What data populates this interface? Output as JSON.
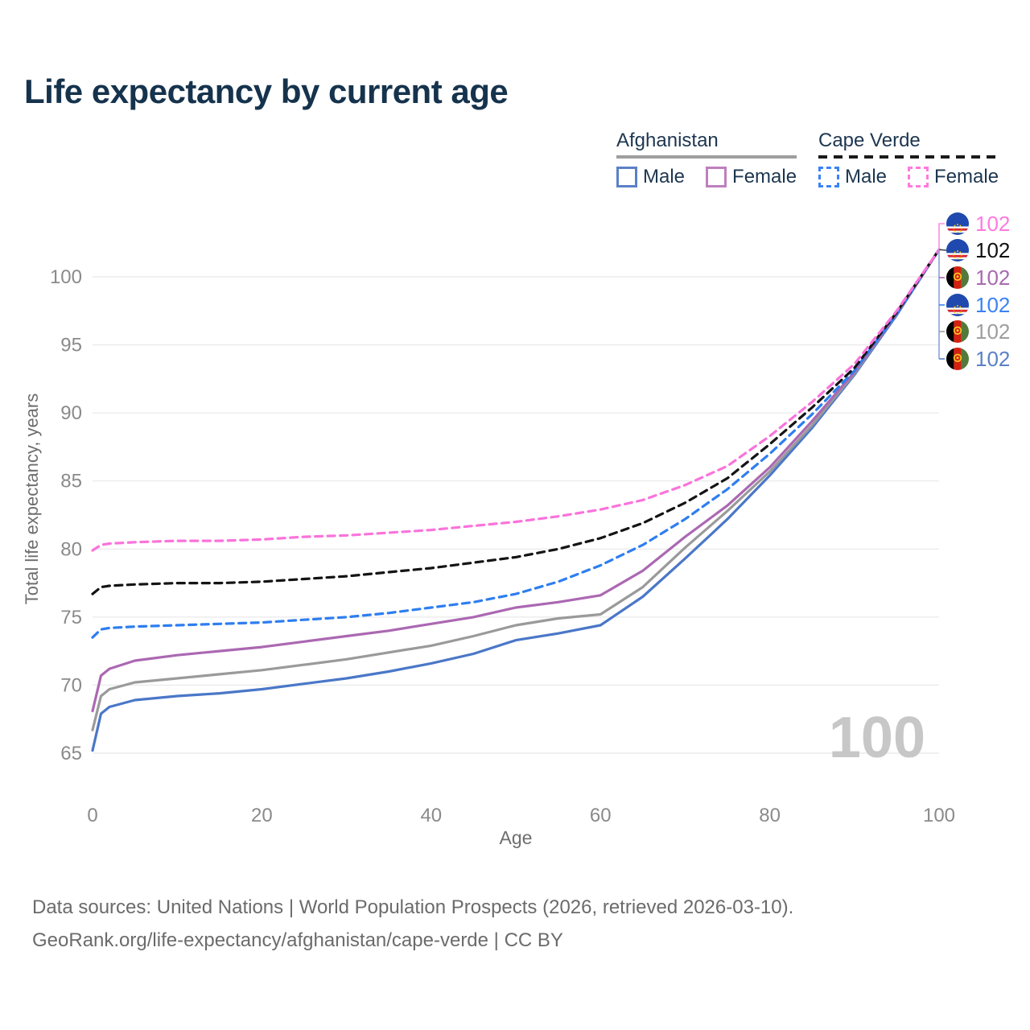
{
  "title": "Life expectancy by current age",
  "watermark_age": "100",
  "legend": {
    "afghanistan": {
      "label": "Afghanistan",
      "male_label": "Male",
      "female_label": "Female",
      "male_color": "#5b80c7",
      "female_color": "#bf7fbe",
      "underline_color": "#9e9e9e",
      "underline_style": "solid"
    },
    "cape_verde": {
      "label": "Cape Verde",
      "male_label": "Male",
      "female_label": "Female",
      "male_color": "#3b82f6",
      "female_color": "#ff7ade",
      "underline_color": "#1a1a1a",
      "underline_style": "dashed"
    }
  },
  "chart_data": {
    "type": "line",
    "title": "Life expectancy by current age",
    "xlabel": "Age",
    "ylabel": "Total life expectancy, years",
    "xlim": [
      0,
      100
    ],
    "ylim": [
      63.5,
      103
    ],
    "xticks": [
      0,
      20,
      40,
      60,
      80,
      100
    ],
    "yticks": [
      65,
      70,
      75,
      80,
      85,
      90,
      95,
      100
    ],
    "grid": "horizontal-only",
    "legend_position": "top-right",
    "x": [
      0,
      1,
      2,
      5,
      10,
      15,
      20,
      25,
      30,
      35,
      40,
      45,
      50,
      55,
      60,
      65,
      70,
      75,
      80,
      85,
      90,
      95,
      100
    ],
    "series": [
      {
        "name": "Afghanistan Male",
        "country": "Afghanistan",
        "sex": "male",
        "color": "#4a77c8",
        "dash": false,
        "flag": "af",
        "end_label": "102",
        "label_color": "#5b80c7",
        "values": [
          65.2,
          67.9,
          68.4,
          68.9,
          69.2,
          69.4,
          69.7,
          70.1,
          70.5,
          71.0,
          71.6,
          72.3,
          73.3,
          73.8,
          74.4,
          76.5,
          79.3,
          82.2,
          85.4,
          88.9,
          92.8,
          97.2,
          102
        ]
      },
      {
        "name": "Afghanistan Both sexes",
        "country": "Afghanistan",
        "sex": "both",
        "color": "#9a9a9a",
        "dash": false,
        "flag": "af",
        "end_label": "102",
        "label_color": "#9e9e9e",
        "values": [
          66.7,
          69.2,
          69.7,
          70.2,
          70.5,
          70.8,
          71.1,
          71.5,
          71.9,
          72.4,
          72.9,
          73.6,
          74.4,
          74.9,
          75.2,
          77.2,
          80.1,
          82.8,
          85.7,
          89.1,
          92.9,
          97.3,
          102
        ]
      },
      {
        "name": "Afghanistan Female",
        "country": "Afghanistan",
        "sex": "female",
        "color": "#ab68b2",
        "dash": false,
        "flag": "af",
        "end_label": "102",
        "label_color": "#a86ab0",
        "values": [
          68.1,
          70.7,
          71.2,
          71.8,
          72.2,
          72.5,
          72.8,
          73.2,
          73.6,
          74.0,
          74.5,
          75.0,
          75.7,
          76.1,
          76.6,
          78.4,
          80.9,
          83.2,
          86.0,
          89.4,
          93.0,
          97.3,
          102
        ]
      },
      {
        "name": "Cape Verde Male",
        "country": "Cape Verde",
        "sex": "male",
        "color": "#2e7ef0",
        "dash": true,
        "flag": "cv",
        "end_label": "102",
        "label_color": "#3b82f6",
        "values": [
          73.5,
          74.1,
          74.2,
          74.3,
          74.4,
          74.5,
          74.6,
          74.8,
          75.0,
          75.3,
          75.7,
          76.1,
          76.7,
          77.6,
          78.8,
          80.3,
          82.2,
          84.4,
          87.0,
          89.9,
          93.1,
          97.3,
          102
        ]
      },
      {
        "name": "Cape Verde Both sexes",
        "country": "Cape Verde",
        "sex": "both",
        "color": "#141414",
        "dash": true,
        "flag": "cv",
        "end_label": "102",
        "label_color": "#111111",
        "values": [
          76.7,
          77.2,
          77.3,
          77.4,
          77.5,
          77.5,
          77.6,
          77.8,
          78.0,
          78.3,
          78.6,
          79.0,
          79.4,
          80.0,
          80.8,
          81.9,
          83.4,
          85.2,
          87.7,
          90.4,
          93.3,
          97.4,
          102
        ]
      },
      {
        "name": "Cape Verde Female",
        "country": "Cape Verde",
        "sex": "female",
        "color": "#fa73db",
        "dash": true,
        "flag": "cv",
        "end_label": "102",
        "label_color": "#ff7ade",
        "values": [
          79.9,
          80.3,
          80.4,
          80.5,
          80.6,
          80.6,
          80.7,
          80.9,
          81.0,
          81.2,
          81.4,
          81.7,
          82.0,
          82.4,
          82.9,
          83.6,
          84.7,
          86.1,
          88.3,
          90.8,
          93.6,
          97.5,
          102
        ]
      }
    ],
    "end_label_order": [
      "Cape Verde Female",
      "Cape Verde Both sexes",
      "Afghanistan Female",
      "Cape Verde Male",
      "Afghanistan Both sexes",
      "Afghanistan Male"
    ]
  },
  "footer": {
    "line1": "Data sources: United Nations | World Population Prospects (2026, retrieved 2026-03-10).",
    "line2": "GeoRank.org/life-expectancy/afghanistan/cape-verde | CC BY"
  }
}
